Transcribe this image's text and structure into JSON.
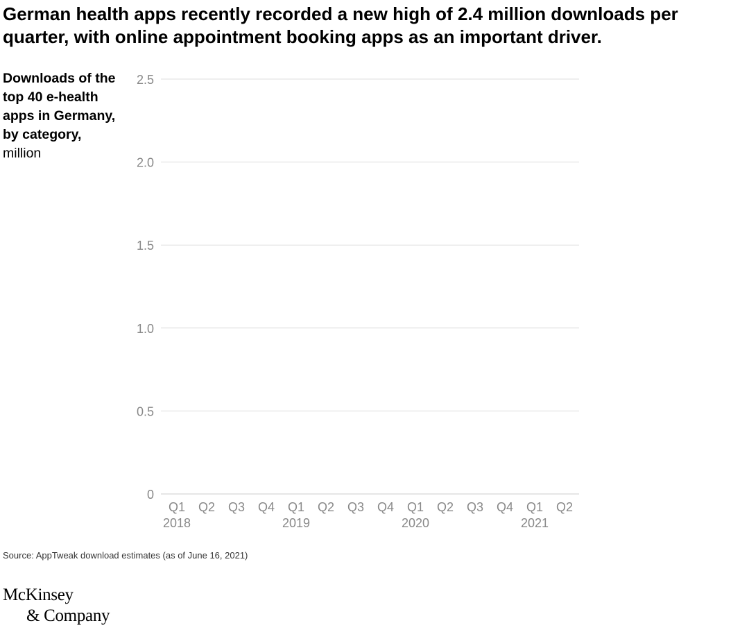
{
  "title": "German health apps recently recorded a new high of 2.4 million downloads per quarter, with online appointment booking apps as an important driver.",
  "ylabel": {
    "main": "Downloads of the top 40 e-health apps in Germany, by category,",
    "unit": "million"
  },
  "source": "Source: AppTweak download estimates (as of June 16, 2021)",
  "logo": {
    "line1": "McKinsey",
    "line2": "& Company"
  },
  "colors": {
    "grid": "#dddddd",
    "axis": "#cccccc",
    "tick_text": "#888888"
  },
  "chart_data": {
    "type": "bar",
    "categories": [
      "Q1",
      "Q2",
      "Q3",
      "Q4",
      "Q1",
      "Q2",
      "Q3",
      "Q4",
      "Q1",
      "Q2",
      "Q3",
      "Q4",
      "Q1",
      "Q2"
    ],
    "year_labels": [
      {
        "label": "2018",
        "category_index": 0
      },
      {
        "label": "2019",
        "category_index": 4
      },
      {
        "label": "2020",
        "category_index": 8
      },
      {
        "label": "2021",
        "category_index": 12
      }
    ],
    "yticks": [
      {
        "value": 0,
        "label": "0"
      },
      {
        "value": 0.5,
        "label": "0.5"
      },
      {
        "value": 1.0,
        "label": "1.0"
      },
      {
        "value": 1.5,
        "label": "1.5"
      },
      {
        "value": 2.0,
        "label": "2.0"
      },
      {
        "value": 2.5,
        "label": "2.5"
      }
    ],
    "ylim": [
      0,
      2.5
    ],
    "series": [],
    "grid": true
  }
}
